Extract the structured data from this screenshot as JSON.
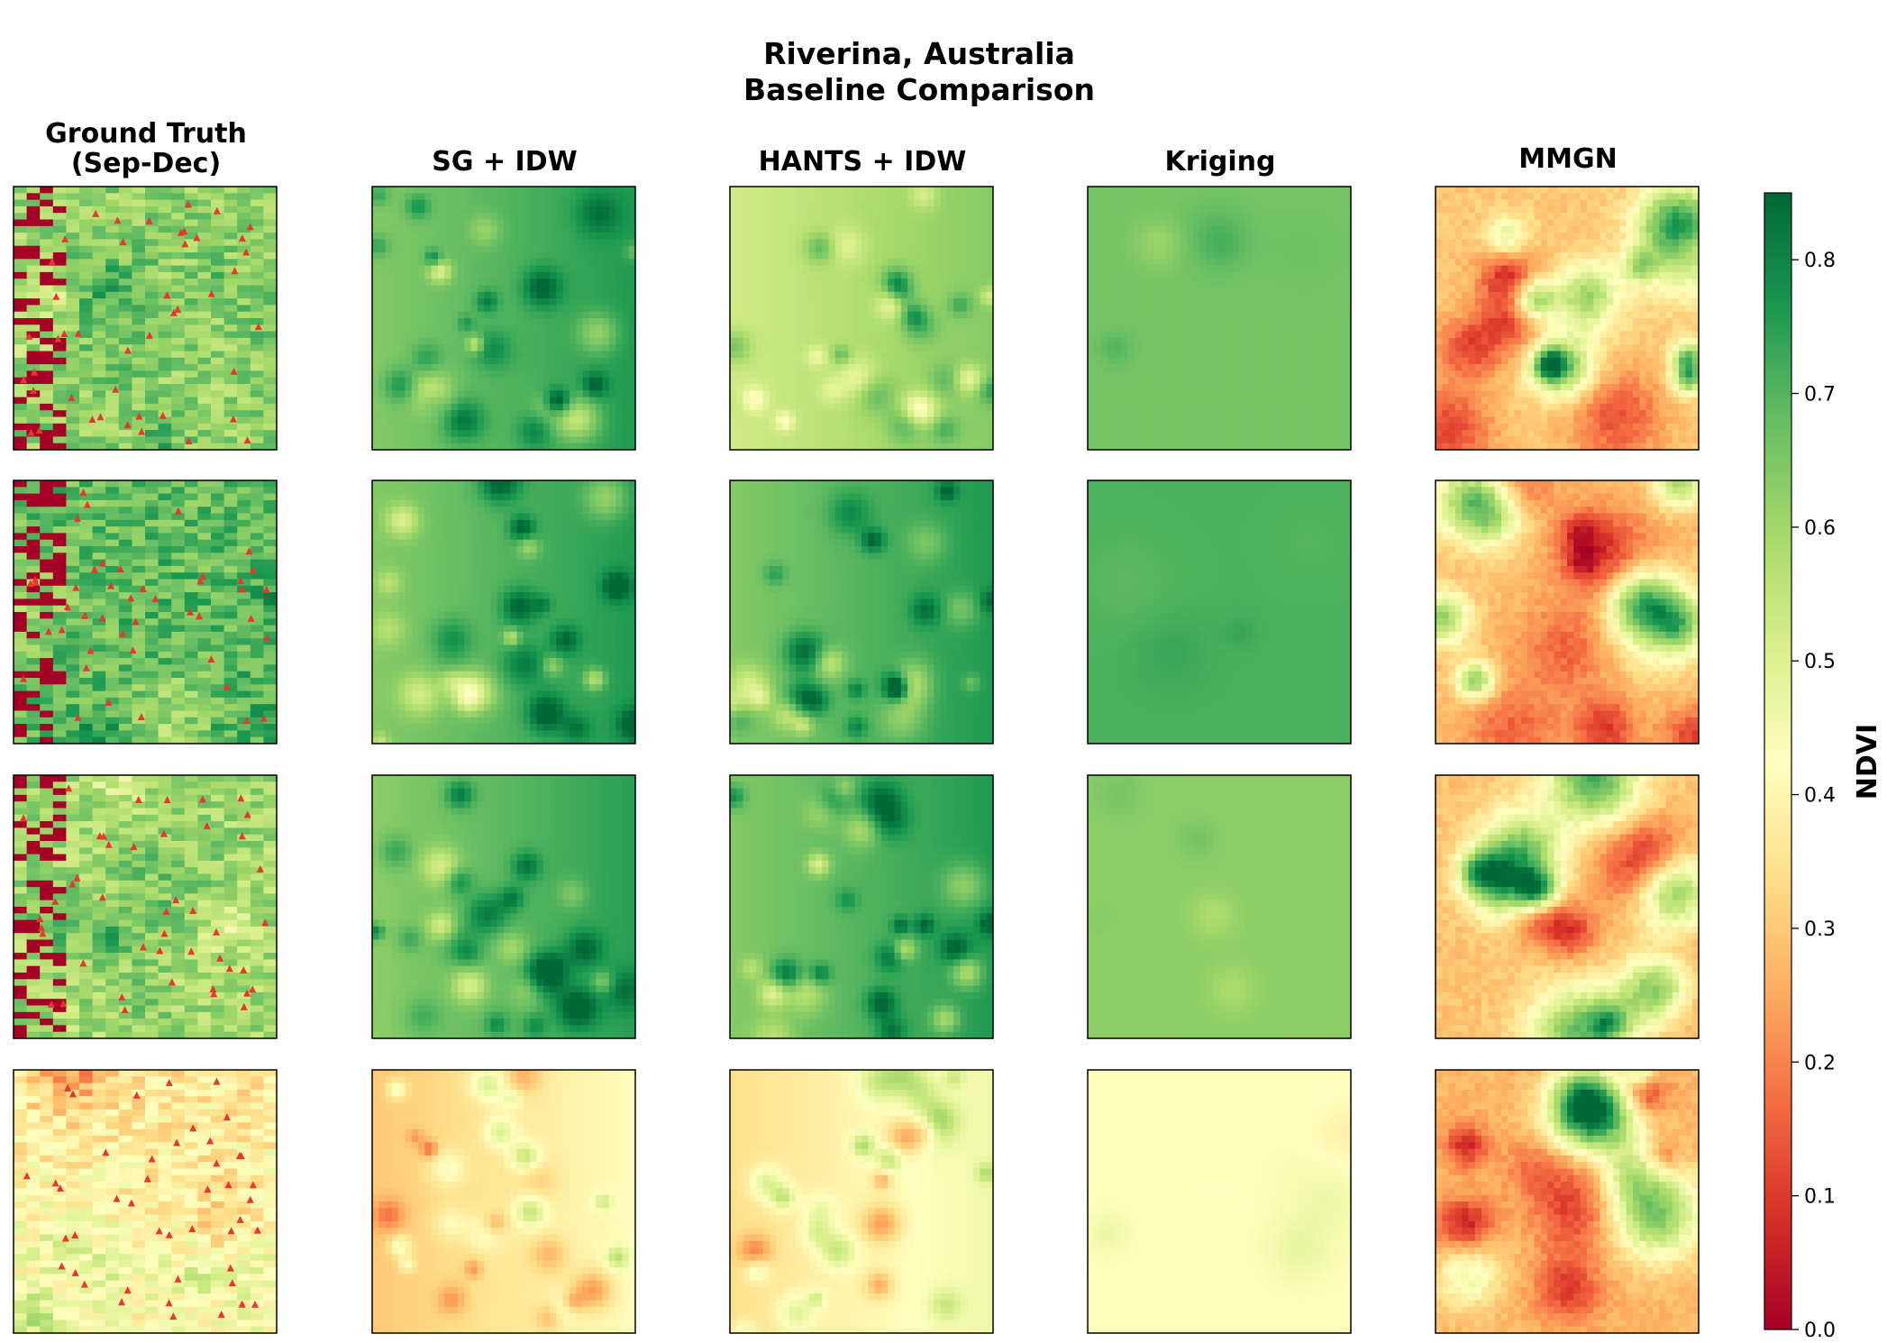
{
  "chart_data": {
    "type": "heatmap",
    "title": "Riverina, Australia",
    "subtitle": "Baseline Comparison",
    "rows": 4,
    "columns": [
      {
        "id": "gt",
        "title_lines": [
          "Ground Truth",
          "(Sep-Dec)"
        ]
      },
      {
        "id": "sg",
        "title_lines": [
          "SG + IDW"
        ]
      },
      {
        "id": "hants",
        "title_lines": [
          "HANTS + IDW"
        ]
      },
      {
        "id": "kriging",
        "title_lines": [
          "Kriging"
        ]
      },
      {
        "id": "mmgn",
        "title_lines": [
          "MMGN"
        ]
      }
    ],
    "panel_mean_ndvi": [
      [
        0.62,
        0.7,
        0.58,
        0.66,
        0.3
      ],
      [
        0.68,
        0.7,
        0.7,
        0.71,
        0.28
      ],
      [
        0.6,
        0.69,
        0.7,
        0.63,
        0.29
      ],
      [
        0.4,
        0.36,
        0.4,
        0.43,
        0.27
      ]
    ],
    "colorbar": {
      "label": "NDVI",
      "colormap": "RdYlGn",
      "range": [
        0.0,
        0.85
      ],
      "ticks": [
        0.0,
        0.1,
        0.2,
        0.3,
        0.4,
        0.5,
        0.6,
        0.7,
        0.8
      ],
      "tick_labels": [
        "0.0",
        "0.1",
        "0.2",
        "0.3",
        "0.4",
        "0.5",
        "0.6",
        "0.7",
        "0.8"
      ]
    },
    "markers": {
      "shape": "triangle",
      "color": "#e8372c",
      "meaning": "observation sites",
      "panels_column": "gt"
    },
    "colors": {
      "ramp": [
        "#a50026",
        "#d73027",
        "#f46d43",
        "#fdae61",
        "#fee08b",
        "#ffffbf",
        "#d9ef8b",
        "#a6d96a",
        "#66bd63",
        "#1a9850",
        "#006837"
      ],
      "marker": "#e8372c"
    }
  }
}
